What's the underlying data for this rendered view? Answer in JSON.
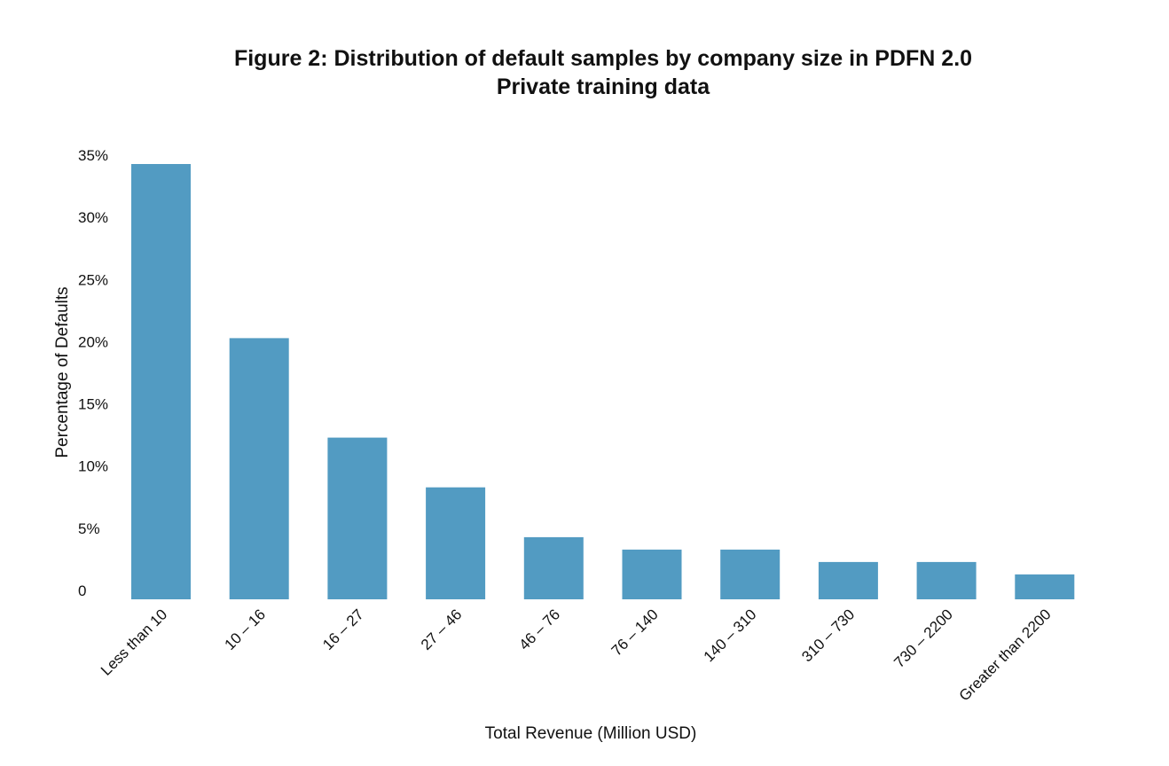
{
  "chart_data": {
    "type": "bar",
    "title": "Figure 2: Distribution of default samples by company size in PDFN 2.0",
    "subtitle": "Private training data",
    "xlabel": "Total Revenue (Million USD)",
    "ylabel": "Percentage of Defaults",
    "ylim": [
      0,
      35
    ],
    "yticks": [
      0,
      5,
      10,
      15,
      20,
      25,
      30,
      35
    ],
    "ytick_labels": [
      "0",
      "5%",
      "10%",
      "15%",
      "20%",
      "25%",
      "30%",
      "35%"
    ],
    "categories": [
      "Less than 10",
      "10 – 16",
      "16 – 27",
      "27 – 46",
      "46 – 76",
      "76 – 140",
      "140 – 310",
      "310 – 730",
      "730 – 2200",
      "Greater than 2200"
    ],
    "values": [
      35.0,
      21.0,
      13.0,
      9.0,
      5.0,
      4.0,
      4.0,
      3.0,
      3.0,
      2.0
    ],
    "bar_color": "#529bc2",
    "grid": false,
    "legend": "none"
  }
}
